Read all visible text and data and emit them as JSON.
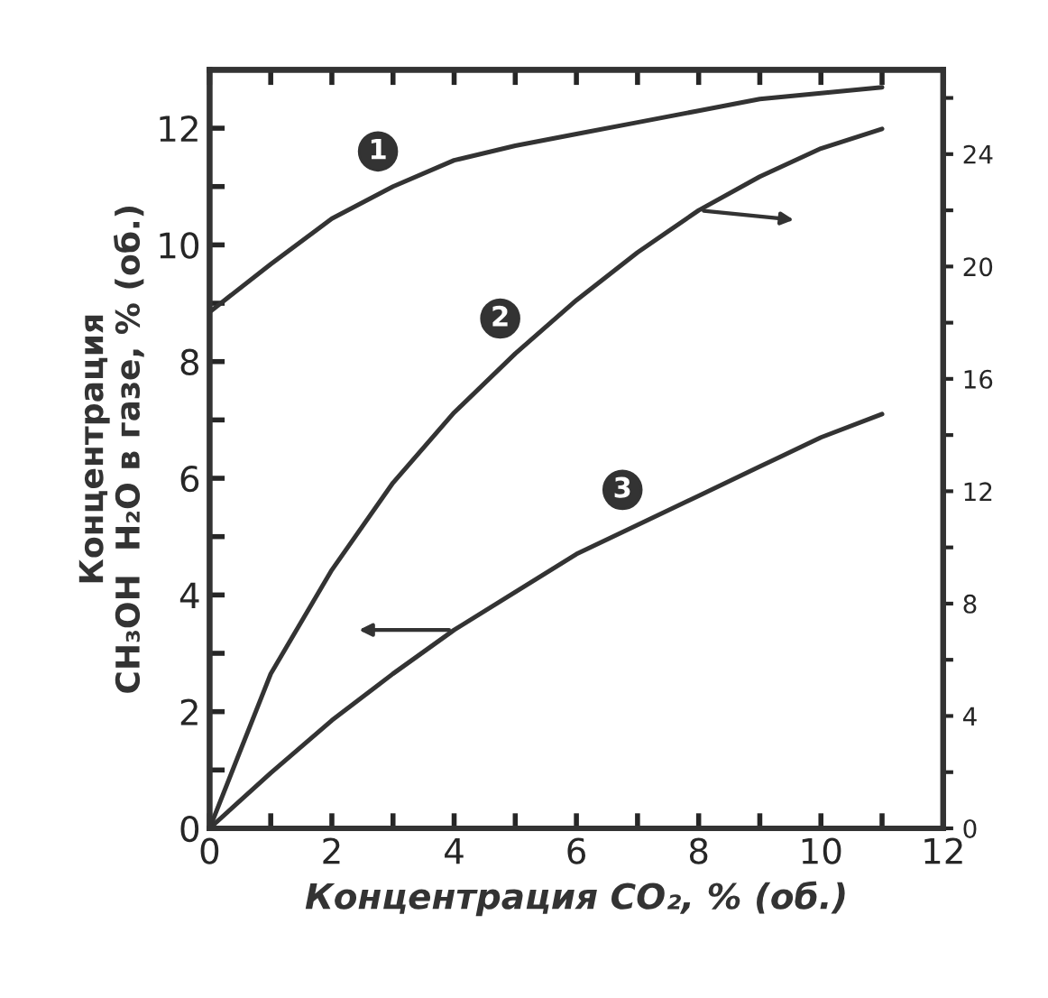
{
  "chart_data": {
    "type": "line",
    "xlabel": "Концентрация CO₂, % (об.)",
    "ylabel": "Концентрация\nCH₃OH  H₂O в газе, % (об.)",
    "x": [
      0,
      1,
      2,
      3,
      4,
      5,
      6,
      7,
      8,
      9,
      10,
      11
    ],
    "series": [
      {
        "name": "1",
        "color": "#333333",
        "values": [
          8.85,
          9.67,
          10.45,
          11.0,
          11.45,
          11.7,
          11.9,
          12.1,
          12.3,
          12.5,
          12.6,
          12.7
        ]
      },
      {
        "name": "2",
        "color": "#333333",
        "axis": "y2",
        "values": [
          0,
          5.5,
          9.2,
          12.3,
          14.8,
          16.9,
          18.8,
          20.5,
          22.0,
          23.2,
          24.2,
          24.9
        ]
      },
      {
        "name": "3",
        "color": "#333333",
        "values": [
          0,
          0.95,
          1.85,
          2.65,
          3.4,
          4.05,
          4.7,
          5.2,
          5.7,
          6.2,
          6.7,
          7.1
        ]
      }
    ],
    "xlim": [
      0,
      12
    ],
    "xticks": [
      0,
      {
        "value": 1,
        "label": null
      },
      2,
      {
        "value": 3,
        "label": null
      },
      4,
      {
        "value": 5,
        "label": null
      },
      6,
      {
        "value": 7,
        "label": null
      },
      8,
      {
        "value": 9,
        "label": null
      },
      10,
      {
        "value": 11,
        "label": null
      },
      12
    ],
    "ylim": [
      0,
      13
    ],
    "yticks": [
      0,
      {
        "value": 1,
        "label": null
      },
      2,
      {
        "value": 3,
        "label": null
      },
      4,
      {
        "value": 5,
        "label": null
      },
      6,
      {
        "value": 7,
        "label": null
      },
      8,
      {
        "value": 9,
        "label": null
      },
      10,
      {
        "value": 11,
        "label": null
      },
      12
    ],
    "y2lim": [
      0,
      27
    ],
    "y2ticks": [
      0,
      {
        "value": 2,
        "label": null
      },
      4,
      {
        "value": 6,
        "label": null
      },
      8,
      {
        "value": 10,
        "label": null
      },
      12,
      {
        "value": 14,
        "label": null
      },
      16,
      {
        "value": 18,
        "label": null
      },
      20,
      {
        "value": 22,
        "label": null
      },
      24,
      {
        "value": 26,
        "label": null
      }
    ],
    "grid": false,
    "legend": false,
    "marker": "none",
    "line_style": "solid"
  }
}
